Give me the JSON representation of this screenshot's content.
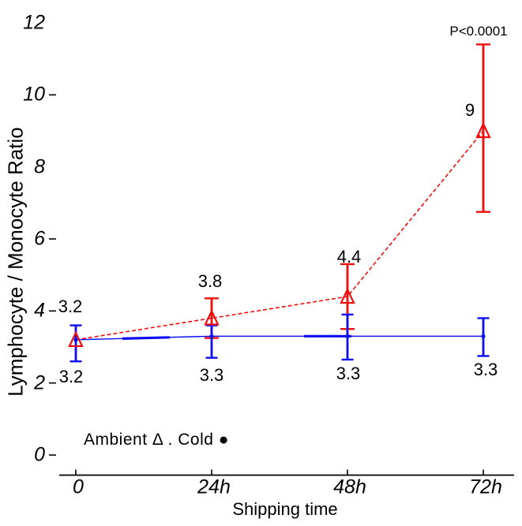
{
  "chart_data": {
    "type": "line",
    "title": "",
    "xlabel": "Shipping time",
    "ylabel": "Lymphocyte / Monocyte Ratio",
    "categories": [
      "0",
      "24h",
      "48h",
      "72h"
    ],
    "yticks": [
      "12",
      "10",
      "8",
      "6",
      "4",
      "2",
      "0"
    ],
    "ytick_values": [
      12,
      10,
      8,
      6,
      4,
      2,
      0
    ],
    "yticks_with_dash": [
      10,
      6,
      4,
      2,
      0
    ],
    "ylim": [
      0,
      12
    ],
    "grid": "off",
    "annotation": "P<0.0001",
    "legend": {
      "text": "Ambient Δ . Cold ●",
      "position": "bottom-left"
    },
    "axis_color": "#000000",
    "series": [
      {
        "name": "Ambient",
        "marker": "open-triangle",
        "line_style": "dashed",
        "color": "#f20d0d",
        "values": [
          3.2,
          3.8,
          4.4,
          9
        ],
        "labels": [
          "3.2",
          "3.8",
          "4.4",
          "9"
        ],
        "err_lo": [
          null,
          3.25,
          3.5,
          6.75
        ],
        "err_hi": [
          null,
          4.35,
          5.3,
          11.4
        ]
      },
      {
        "name": "Cold",
        "marker": "filled-dot",
        "line_style": "solid",
        "color": "#0d0df2",
        "values": [
          3.2,
          3.3,
          3.3,
          3.3
        ],
        "labels": [
          "3.2",
          "3.3",
          "3.3",
          "3.3"
        ],
        "err_lo": [
          2.6,
          2.7,
          2.65,
          2.75
        ],
        "err_hi": [
          3.6,
          3.6,
          3.9,
          3.8
        ]
      }
    ]
  }
}
